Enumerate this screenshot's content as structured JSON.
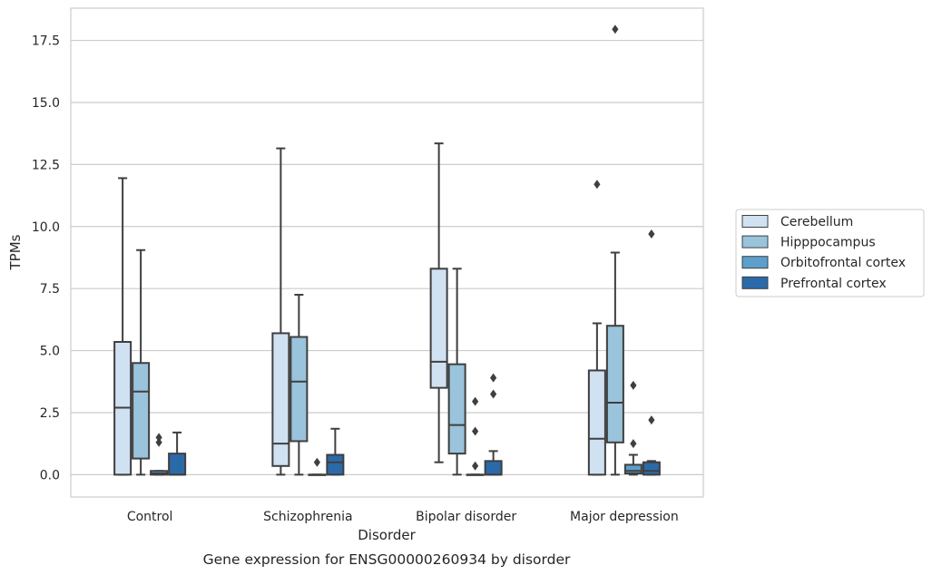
{
  "chart_data": {
    "type": "box",
    "title": "",
    "caption": "Gene expression for ENSG00000260934 by disorder",
    "xlabel": "Disorder",
    "ylabel": "TPMs",
    "ylim": [
      -0.9,
      18.8
    ],
    "yticks": [
      0.0,
      2.5,
      5.0,
      7.5,
      10.0,
      12.5,
      15.0,
      17.5
    ],
    "ytick_labels": [
      "0.0",
      "2.5",
      "5.0",
      "7.5",
      "10.0",
      "12.5",
      "15.0",
      "17.5"
    ],
    "grid": "horizontal",
    "legend_position": "right",
    "categories": [
      "Control",
      "Schizophrenia",
      "Bipolar disorder",
      "Major depression"
    ],
    "series": [
      {
        "name": "Cerebellum",
        "color": "#d0e1f2",
        "boxes": [
          {
            "q1": 0.0,
            "median": 2.7,
            "q3": 5.35,
            "whisker_low": 0.0,
            "whisker_high": 11.95,
            "outliers": []
          },
          {
            "q1": 0.35,
            "median": 1.25,
            "q3": 5.7,
            "whisker_low": 0.0,
            "whisker_high": 13.15,
            "outliers": []
          },
          {
            "q1": 3.5,
            "median": 4.55,
            "q3": 8.3,
            "whisker_low": 0.5,
            "whisker_high": 13.35,
            "outliers": []
          },
          {
            "q1": 0.0,
            "median": 1.45,
            "q3": 4.2,
            "whisker_low": 0.0,
            "whisker_high": 6.1,
            "outliers": [
              11.7
            ]
          }
        ]
      },
      {
        "name": "Hipppocampus",
        "color": "#9ac3dc",
        "boxes": [
          {
            "q1": 0.65,
            "median": 3.35,
            "q3": 4.5,
            "whisker_low": 0.0,
            "whisker_high": 9.05,
            "outliers": []
          },
          {
            "q1": 1.35,
            "median": 3.75,
            "q3": 5.55,
            "whisker_low": 0.0,
            "whisker_high": 7.25,
            "outliers": []
          },
          {
            "q1": 0.85,
            "median": 2.0,
            "q3": 4.45,
            "whisker_low": 0.0,
            "whisker_high": 8.3,
            "outliers": []
          },
          {
            "q1": 1.3,
            "median": 2.9,
            "q3": 6.0,
            "whisker_low": 0.0,
            "whisker_high": 8.95,
            "outliers": [
              17.95
            ]
          }
        ]
      },
      {
        "name": "Orbitofrontal cortex",
        "color": "#5c9fcc",
        "boxes": [
          {
            "q1": 0.0,
            "median": 0.05,
            "q3": 0.15,
            "whisker_low": 0.0,
            "whisker_high": 0.15,
            "outliers": [
              1.3,
              1.5
            ]
          },
          {
            "q1": 0.0,
            "median": 0.0,
            "q3": 0.0,
            "whisker_low": 0.0,
            "whisker_high": 0.0,
            "outliers": [
              0.5
            ]
          },
          {
            "q1": 0.0,
            "median": 0.0,
            "q3": 0.0,
            "whisker_low": 0.0,
            "whisker_high": 0.0,
            "outliers": [
              0.35,
              1.75,
              2.95
            ]
          },
          {
            "q1": 0.05,
            "median": 0.15,
            "q3": 0.4,
            "whisker_low": 0.0,
            "whisker_high": 0.8,
            "outliers": [
              1.25,
              3.6
            ]
          }
        ]
      },
      {
        "name": "Prefrontal cortex",
        "color": "#2b6aa9",
        "boxes": [
          {
            "q1": 0.0,
            "median": 0.0,
            "q3": 0.85,
            "whisker_low": 0.0,
            "whisker_high": 1.7,
            "outliers": []
          },
          {
            "q1": 0.0,
            "median": 0.5,
            "q3": 0.8,
            "whisker_low": 0.0,
            "whisker_high": 1.85,
            "outliers": []
          },
          {
            "q1": 0.0,
            "median": 0.0,
            "q3": 0.55,
            "whisker_low": 0.0,
            "whisker_high": 0.95,
            "outliers": [
              3.25,
              3.9
            ]
          },
          {
            "q1": 0.0,
            "median": 0.15,
            "q3": 0.5,
            "whisker_low": 0.0,
            "whisker_high": 0.55,
            "outliers": [
              2.2,
              9.7
            ]
          }
        ]
      }
    ],
    "style": {
      "line_color": "#3f3f3f",
      "grid_color": "#cccccc",
      "frame_color": "#cccccc",
      "background": "#ffffff"
    }
  }
}
